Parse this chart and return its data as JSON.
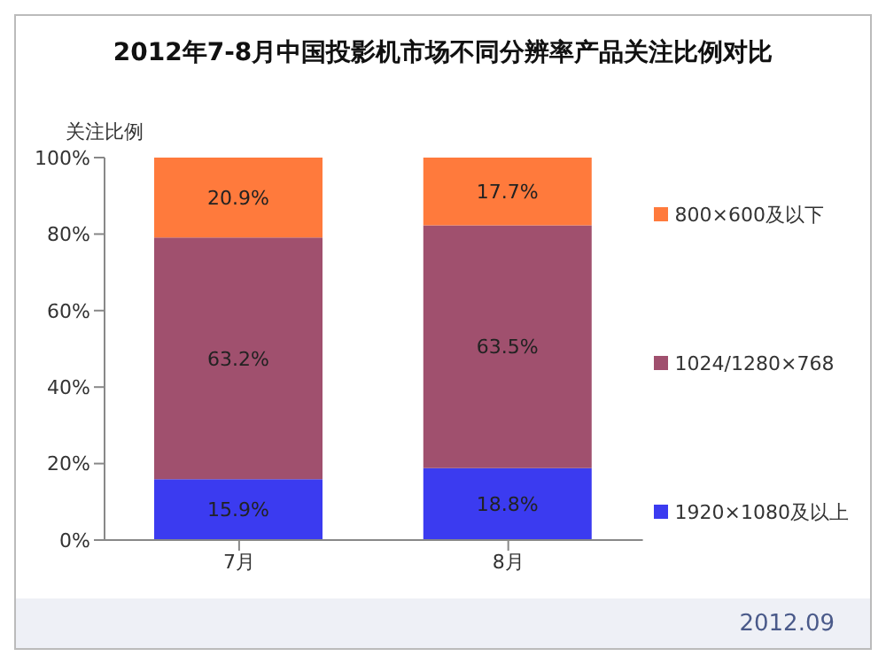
{
  "chart_data": {
    "type": "bar",
    "title": "2012年7-8月中国投影机市场不同分辨率产品关注比例对比",
    "ylabel": "关注比例",
    "categories": [
      "7月",
      "8月"
    ],
    "stacked": true,
    "series": [
      {
        "name": "1920×1080及以上",
        "color": "#3b3bf0",
        "values": [
          15.9,
          18.8
        ],
        "value_labels": [
          "15.9%",
          "18.8%"
        ]
      },
      {
        "name": "1024/1280×768",
        "color": "#a0506e",
        "values": [
          63.2,
          63.5
        ],
        "value_labels": [
          "63.2%",
          "63.5%"
        ]
      },
      {
        "name": "800×600及以下",
        "color": "#ff7a3c",
        "values": [
          20.9,
          17.7
        ],
        "value_labels": [
          "20.9%",
          "17.7%"
        ]
      }
    ],
    "ylim": [
      0,
      100
    ],
    "yticks": [
      {
        "value": 0,
        "label": "0%"
      },
      {
        "value": 20,
        "label": "20%"
      },
      {
        "value": 40,
        "label": "40%"
      },
      {
        "value": 60,
        "label": "60%"
      },
      {
        "value": 80,
        "label": "80%"
      },
      {
        "value": 100,
        "label": "100%"
      }
    ],
    "grid": false,
    "legend": "right",
    "annotations": [
      "2012.09"
    ]
  }
}
